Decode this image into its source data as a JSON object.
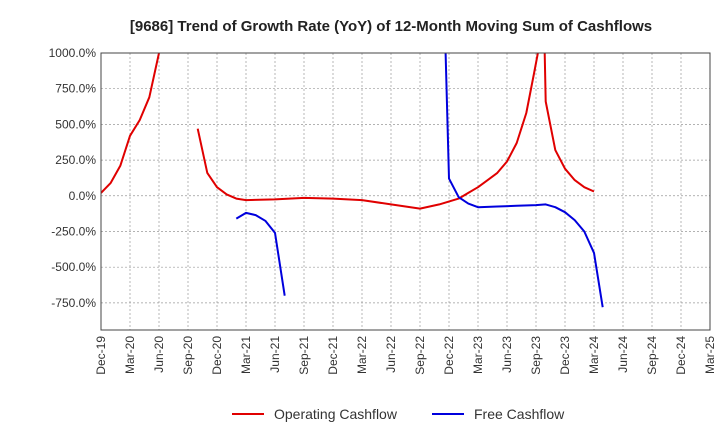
{
  "chart_data": {
    "type": "line",
    "title": "[9686]  Trend of Growth Rate (YoY) of 12-Month Moving Sum of Cashflows",
    "xlabel": "",
    "ylabel": "",
    "ylim": [
      -940,
      1000
    ],
    "y_ticks": [
      1000,
      750,
      500,
      250,
      0,
      -250,
      -500,
      -750
    ],
    "y_tick_labels": [
      "1000.0%",
      "750.0%",
      "500.0%",
      "250.0%",
      "0.0%",
      "-250.0%",
      "-500.0%",
      "-750.0%"
    ],
    "x_tick_labels": [
      "Dec-19",
      "Mar-20",
      "Jun-20",
      "Sep-20",
      "Dec-20",
      "Mar-21",
      "Jun-21",
      "Sep-21",
      "Dec-21",
      "Mar-22",
      "Jun-22",
      "Sep-22",
      "Dec-22",
      "Mar-23",
      "Jun-23",
      "Sep-23",
      "Dec-23",
      "Mar-24",
      "Jun-24",
      "Sep-24",
      "Dec-24",
      "Mar-25"
    ],
    "x_range_months": [
      0,
      63
    ],
    "grid": true,
    "legend_position": "bottom",
    "series": [
      {
        "name": "Operating Cashflow",
        "color": "#e00000",
        "segments": [
          [
            [
              0,
              20
            ],
            [
              1,
              90
            ],
            [
              2,
              210
            ],
            [
              3,
              420
            ],
            [
              4,
              530
            ],
            [
              5,
              690
            ],
            [
              6,
              1000
            ]
          ],
          [
            [
              10,
              470
            ],
            [
              11,
              160
            ],
            [
              12,
              60
            ],
            [
              13,
              10
            ],
            [
              14,
              -20
            ],
            [
              15,
              -30
            ],
            [
              18,
              -25
            ],
            [
              21,
              -15
            ],
            [
              24,
              -20
            ],
            [
              27,
              -30
            ],
            [
              30,
              -60
            ],
            [
              33,
              -90
            ],
            [
              35,
              -60
            ],
            [
              37,
              -20
            ],
            [
              38,
              20
            ],
            [
              39,
              60
            ],
            [
              40,
              110
            ],
            [
              41,
              160
            ],
            [
              42,
              240
            ],
            [
              43,
              370
            ],
            [
              44,
              580
            ],
            [
              44.8,
              860
            ],
            [
              45.2,
              1000
            ]
          ],
          [
            [
              45.9,
              1000
            ],
            [
              46,
              660
            ],
            [
              47,
              320
            ],
            [
              48,
              190
            ],
            [
              49,
              110
            ],
            [
              50,
              60
            ],
            [
              51,
              30
            ]
          ]
        ]
      },
      {
        "name": "Free Cashflow",
        "color": "#0000dd",
        "segments": [
          [
            [
              14,
              -160
            ],
            [
              15,
              -120
            ],
            [
              16,
              -135
            ],
            [
              17,
              -175
            ],
            [
              18,
              -260
            ],
            [
              19,
              -700
            ]
          ],
          [
            [
              35.65,
              1000
            ],
            [
              36,
              120
            ],
            [
              37,
              -10
            ],
            [
              38,
              -55
            ],
            [
              39,
              -80
            ],
            [
              41,
              -75
            ],
            [
              43,
              -70
            ],
            [
              45,
              -65
            ],
            [
              46,
              -60
            ],
            [
              47,
              -80
            ],
            [
              48,
              -115
            ],
            [
              49,
              -170
            ],
            [
              50,
              -250
            ],
            [
              51,
              -400
            ],
            [
              51.9,
              -780
            ]
          ]
        ]
      }
    ]
  }
}
